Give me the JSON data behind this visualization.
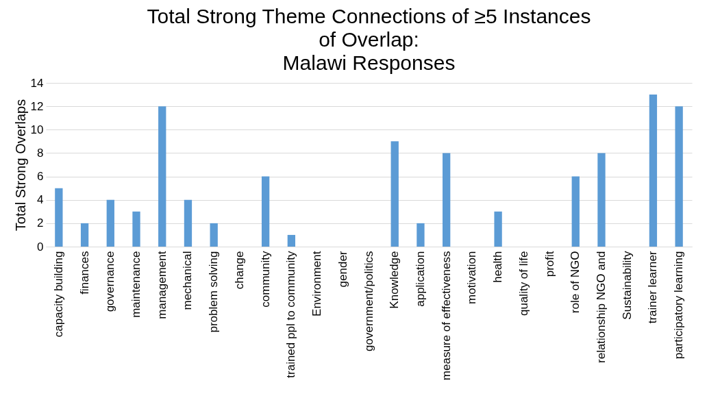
{
  "chart_data": {
    "type": "bar",
    "title": "Total Strong Theme Connections of ≥5 Instances\nof Overlap:\nMalawi Responses",
    "ylabel": "Total Strong Overlaps",
    "categories": [
      "capacity building",
      "finances",
      "governance",
      "maintenance",
      "management",
      "mechanical",
      "problem solving",
      "change",
      "community",
      "trained ppl to community",
      "Environment",
      "gender",
      "government/politics",
      "Knowledge",
      "application",
      "measure of effectiveness",
      "motivation",
      "health",
      "quality of life",
      "profit",
      "role of NGO",
      "relationship NGO and",
      "Sustainability",
      "trainer learner",
      "participatory learning"
    ],
    "values": [
      5,
      2,
      4,
      3,
      12,
      4,
      2,
      0,
      6,
      1,
      0,
      0,
      0,
      9,
      2,
      8,
      0,
      3,
      0,
      0,
      6,
      8,
      0,
      13,
      12
    ],
    "color": "#5b9bd5",
    "ylim": [
      0,
      14
    ],
    "yticks": [
      0,
      2,
      4,
      6,
      8,
      10,
      12,
      14
    ],
    "grid": "y"
  }
}
